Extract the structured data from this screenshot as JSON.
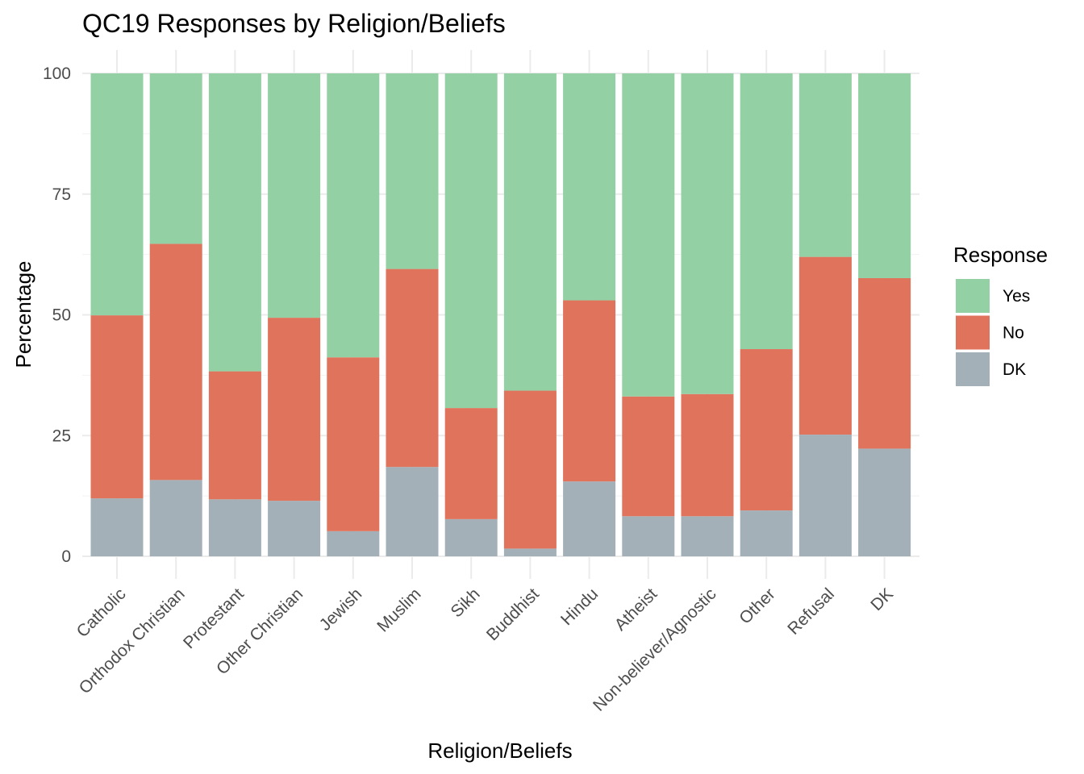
{
  "chart_data": {
    "type": "bar",
    "stacked": true,
    "title": "QC19 Responses by Religion/Beliefs",
    "xlabel": "Religion/Beliefs",
    "ylabel": "Percentage",
    "ylim": [
      0,
      100
    ],
    "yticks": [
      0,
      25,
      50,
      75,
      100
    ],
    "grid": true,
    "legend": {
      "title": "Response",
      "position": "right"
    },
    "categories": [
      "Catholic",
      "Orthodox Christian",
      "Protestant",
      "Other Christian",
      "Jewish",
      "Muslim",
      "Sikh",
      "Buddhist",
      "Hindu",
      "Atheist",
      "Non-believer/Agnostic",
      "Other",
      "Refusal",
      "DK"
    ],
    "series": [
      {
        "name": "DK",
        "color": "#a3b0b8",
        "values": [
          12.0,
          15.8,
          11.8,
          11.5,
          5.2,
          18.5,
          7.7,
          1.6,
          15.5,
          8.3,
          8.3,
          9.5,
          25.2,
          22.3
        ]
      },
      {
        "name": "No",
        "color": "#e0735c",
        "values": [
          37.9,
          48.9,
          26.5,
          37.9,
          36.0,
          41.0,
          23.0,
          32.7,
          37.5,
          24.8,
          25.3,
          33.4,
          36.8,
          35.3
        ]
      },
      {
        "name": "Yes",
        "color": "#93d0a4",
        "values": [
          50.1,
          35.3,
          61.7,
          50.6,
          58.8,
          40.5,
          69.3,
          65.7,
          47.0,
          66.9,
          66.4,
          57.1,
          38.0,
          42.4
        ]
      }
    ],
    "legend_order": [
      "Yes",
      "No",
      "DK"
    ]
  }
}
